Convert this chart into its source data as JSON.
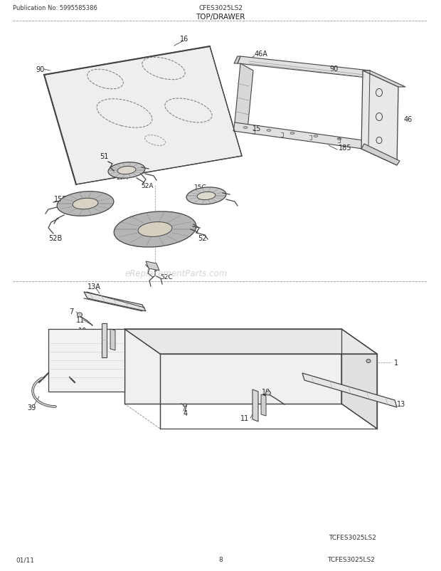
{
  "title": "TOP/DRAWER",
  "pub_no": "Publication No: 5995585386",
  "model": "CFES3025LS2",
  "model2": "TCFES3025LS2",
  "date": "01/11",
  "page": "8",
  "watermark": "eReplacementParts.com",
  "bg_color": "#ffffff",
  "line_color": "#444444",
  "label_color": "#222222"
}
